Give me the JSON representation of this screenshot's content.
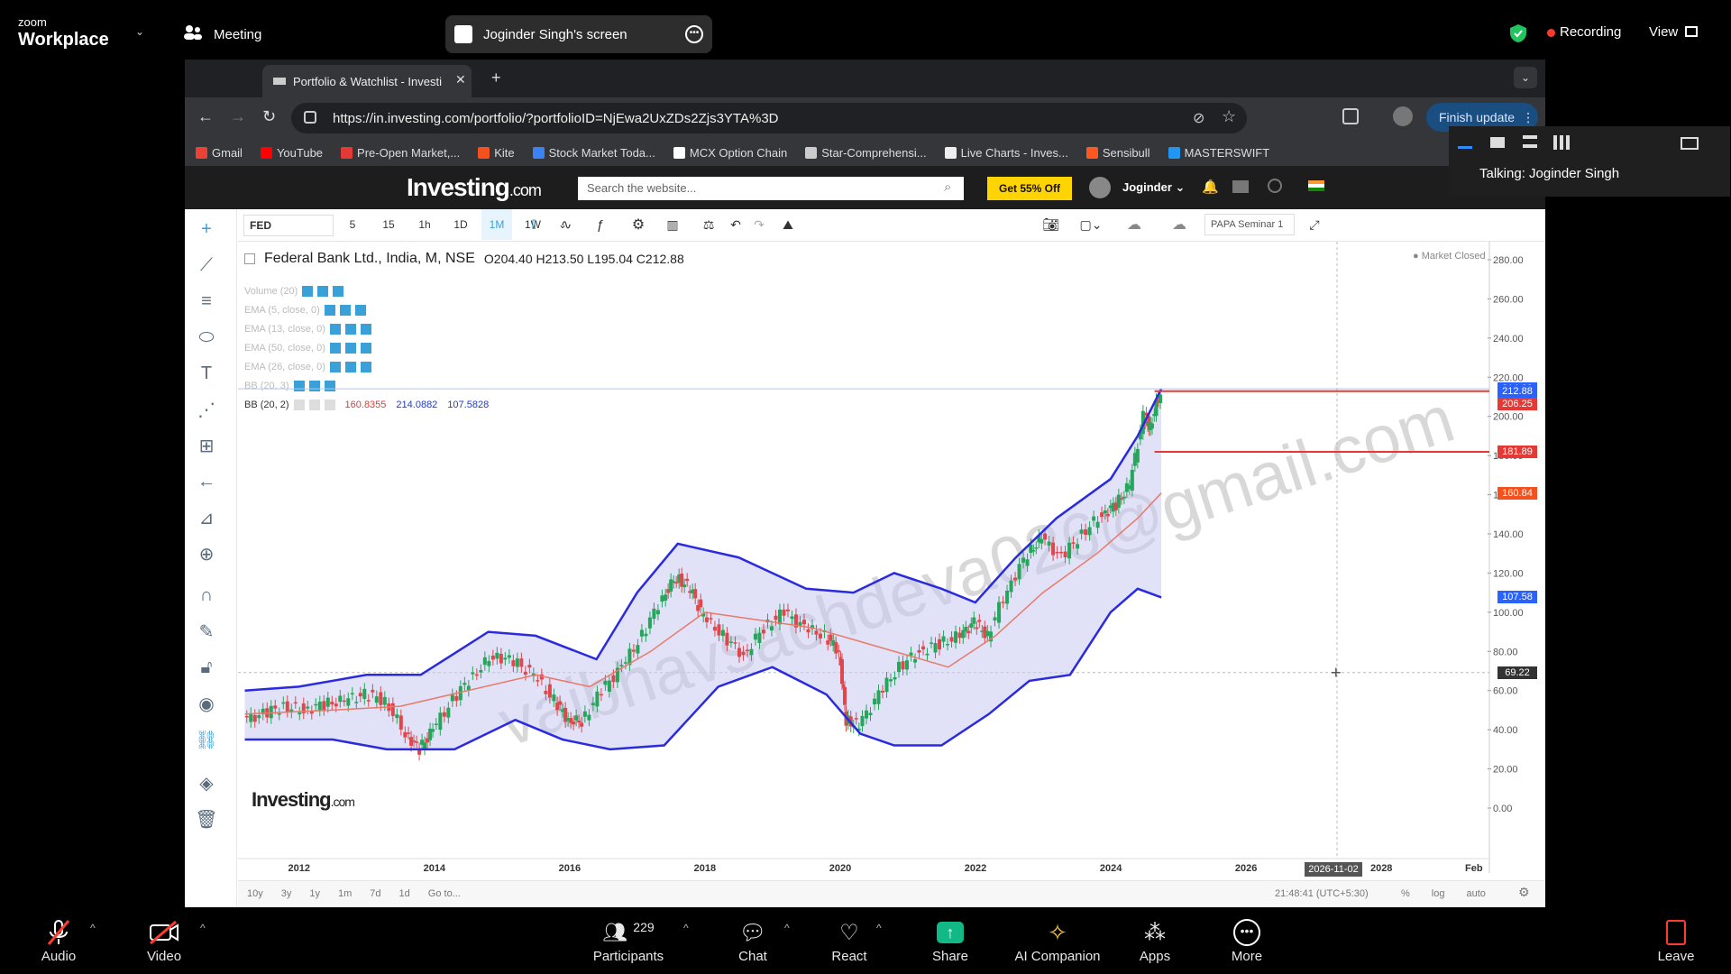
{
  "zoom": {
    "brand_top": "zoom",
    "brand": "Workplace",
    "meeting": "Meeting",
    "share_title": "Joginder Singh's screen",
    "recording": "Recording",
    "view": "View",
    "talking": "Talking: Joginder Singh",
    "bottom": {
      "audio": "Audio",
      "video": "Video",
      "participants": "Participants",
      "participants_count": "229",
      "chat": "Chat",
      "react": "React",
      "share": "Share",
      "ai": "AI Companion",
      "apps": "Apps",
      "more": "More",
      "leave": "Leave"
    }
  },
  "browser": {
    "tab_title": "Portfolio & Watchlist - Investi",
    "url": "https://in.investing.com/portfolio/?portfolioID=NjEwa2UxZDs2Zjs3YTA%3D",
    "finish_update": "Finish update",
    "bookmarks": [
      {
        "label": "Gmail",
        "color": "#ea4335"
      },
      {
        "label": "YouTube",
        "color": "#ff0000"
      },
      {
        "label": "Pre-Open Market,...",
        "color": "#e53935"
      },
      {
        "label": "Kite",
        "color": "#f4511e"
      },
      {
        "label": "Stock Market Toda...",
        "color": "#3b82f6"
      },
      {
        "label": "MCX Option Chain",
        "color": "#ffffff"
      },
      {
        "label": "Star-Comprehensi...",
        "color": "#cccccc"
      },
      {
        "label": "Live Charts - Inves...",
        "color": "#eeeeee"
      },
      {
        "label": "Sensibull",
        "color": "#ff5722"
      },
      {
        "label": "MASTERSWIFT",
        "color": "#2196f3"
      }
    ]
  },
  "investing": {
    "logo": "Investing",
    "logo_suffix": ".com",
    "search_placeholder": "Search the website...",
    "promo": "Get 55% Off",
    "user": "Joginder"
  },
  "chart_toolbar": {
    "symbol": "FED",
    "intervals": [
      "5",
      "15",
      "1h",
      "1D",
      "1M",
      "1W"
    ],
    "layout_name": "PAPA Seminar 1"
  },
  "chart_header": {
    "title": "Federal Bank Ltd., India, M, NSE",
    "ohlc": "O204.40  H213.50  L195.04  C212.88",
    "market_status": "Market Closed",
    "indicators": [
      "Volume (20)",
      "EMA (5, close, 0)",
      "EMA (13, close, 0)",
      "EMA (50, close, 0)",
      "EMA (26, close, 0)",
      "BB (20, 3)",
      "BB (20, 2)"
    ],
    "bb_values": [
      "160.8355",
      "214.0882",
      "107.5828"
    ]
  },
  "watermark": "vaibhavsachdeva026@gmail.com",
  "chart_logo": "Investing",
  "chart_logo_suffix": ".com",
  "cursor_time": "2026-11-02",
  "clock": "21:48:41 (UTC+5:30)",
  "ranges": [
    "10y",
    "3y",
    "1y",
    "1m",
    "7d",
    "1d",
    "Go to..."
  ],
  "scale_opts": [
    "%",
    "log",
    "auto"
  ],
  "price_tags": [
    {
      "label": "214.09",
      "price": 214.09,
      "color": "#2962ff"
    },
    {
      "label": "212.88",
      "price": 212.88,
      "color": "#2962ff"
    },
    {
      "label": "206.25",
      "price": 206.25,
      "color": "#e53935"
    },
    {
      "label": "181.89",
      "price": 181.89,
      "color": "#e53935"
    },
    {
      "label": "160.84",
      "price": 160.84,
      "color": "#f4511e"
    },
    {
      "label": "107.58",
      "price": 107.58,
      "color": "#2962ff"
    },
    {
      "label": "69.22",
      "price": 69.22,
      "color": "#333333"
    }
  ],
  "chart_data": {
    "type": "candlestick",
    "title": "Federal Bank Ltd., India, M, NSE",
    "x_ticks": [
      "2012",
      "2014",
      "2016",
      "2018",
      "2020",
      "2022",
      "2024",
      "2026",
      "2028",
      "Feb"
    ],
    "y_ticks": [
      "0.00",
      "20.00",
      "40.00",
      "60.00",
      "80.00",
      "100.00",
      "120.00",
      "140.00",
      "160.00",
      "180.00",
      "200.00",
      "220.00",
      "240.00",
      "260.00",
      "280.00"
    ],
    "ylim": [
      0,
      290
    ],
    "xlim": [
      2011.1,
      2029.6
    ],
    "horizontal_lines": [
      212.88,
      181.89
    ],
    "close_series": [
      [
        2011.2,
        45
      ],
      [
        2011.5,
        48
      ],
      [
        2011.8,
        52
      ],
      [
        2012.1,
        50
      ],
      [
        2012.4,
        53
      ],
      [
        2012.7,
        55
      ],
      [
        2013.0,
        58
      ],
      [
        2013.3,
        55
      ],
      [
        2013.6,
        38
      ],
      [
        2013.8,
        30
      ],
      [
        2014.0,
        40
      ],
      [
        2014.3,
        55
      ],
      [
        2014.6,
        68
      ],
      [
        2014.9,
        78
      ],
      [
        2015.2,
        75
      ],
      [
        2015.5,
        68
      ],
      [
        2015.8,
        55
      ],
      [
        2016.0,
        45
      ],
      [
        2016.2,
        44
      ],
      [
        2016.5,
        60
      ],
      [
        2016.8,
        72
      ],
      [
        2017.1,
        88
      ],
      [
        2017.4,
        108
      ],
      [
        2017.6,
        118
      ],
      [
        2017.8,
        112
      ],
      [
        2018.0,
        98
      ],
      [
        2018.3,
        88
      ],
      [
        2018.6,
        78
      ],
      [
        2018.9,
        92
      ],
      [
        2019.2,
        100
      ],
      [
        2019.5,
        92
      ],
      [
        2019.8,
        88
      ],
      [
        2020.0,
        80
      ],
      [
        2020.1,
        45
      ],
      [
        2020.3,
        42
      ],
      [
        2020.6,
        58
      ],
      [
        2020.9,
        72
      ],
      [
        2021.2,
        80
      ],
      [
        2021.5,
        84
      ],
      [
        2021.8,
        88
      ],
      [
        2022.0,
        95
      ],
      [
        2022.2,
        88
      ],
      [
        2022.5,
        112
      ],
      [
        2022.8,
        130
      ],
      [
        2023.0,
        138
      ],
      [
        2023.3,
        128
      ],
      [
        2023.6,
        140
      ],
      [
        2023.9,
        150
      ],
      [
        2024.1,
        155
      ],
      [
        2024.3,
        165
      ],
      [
        2024.5,
        200
      ],
      [
        2024.6,
        195
      ],
      [
        2024.75,
        212.88
      ]
    ],
    "bb_upper": [
      [
        2011.2,
        60
      ],
      [
        2012.0,
        62
      ],
      [
        2013.0,
        68
      ],
      [
        2013.8,
        68
      ],
      [
        2014.8,
        90
      ],
      [
        2015.5,
        88
      ],
      [
        2016.4,
        76
      ],
      [
        2017.0,
        110
      ],
      [
        2017.6,
        135
      ],
      [
        2018.5,
        128
      ],
      [
        2019.5,
        112
      ],
      [
        2020.2,
        110
      ],
      [
        2020.8,
        120
      ],
      [
        2021.5,
        112
      ],
      [
        2022.0,
        105
      ],
      [
        2022.6,
        128
      ],
      [
        2023.2,
        148
      ],
      [
        2024.0,
        168
      ],
      [
        2024.4,
        190
      ],
      [
        2024.75,
        214.09
      ]
    ],
    "bb_middle": [
      [
        2011.2,
        48
      ],
      [
        2012.5,
        50
      ],
      [
        2013.5,
        52
      ],
      [
        2014.5,
        60
      ],
      [
        2015.5,
        68
      ],
      [
        2016.3,
        62
      ],
      [
        2017.2,
        80
      ],
      [
        2018.0,
        100
      ],
      [
        2018.8,
        96
      ],
      [
        2019.6,
        92
      ],
      [
        2020.3,
        85
      ],
      [
        2021.0,
        78
      ],
      [
        2021.6,
        72
      ],
      [
        2022.3,
        88
      ],
      [
        2023.0,
        110
      ],
      [
        2023.8,
        130
      ],
      [
        2024.4,
        148
      ],
      [
        2024.75,
        160.84
      ]
    ],
    "bb_lower": [
      [
        2011.2,
        35
      ],
      [
        2012.5,
        35
      ],
      [
        2013.3,
        30
      ],
      [
        2014.3,
        30
      ],
      [
        2015.2,
        45
      ],
      [
        2015.9,
        35
      ],
      [
        2016.6,
        30
      ],
      [
        2017.4,
        32
      ],
      [
        2018.2,
        62
      ],
      [
        2019.0,
        72
      ],
      [
        2019.8,
        58
      ],
      [
        2020.3,
        38
      ],
      [
        2020.8,
        32
      ],
      [
        2021.5,
        32
      ],
      [
        2022.2,
        48
      ],
      [
        2022.8,
        65
      ],
      [
        2023.4,
        68
      ],
      [
        2024.0,
        100
      ],
      [
        2024.4,
        112
      ],
      [
        2024.75,
        107.58
      ]
    ]
  }
}
